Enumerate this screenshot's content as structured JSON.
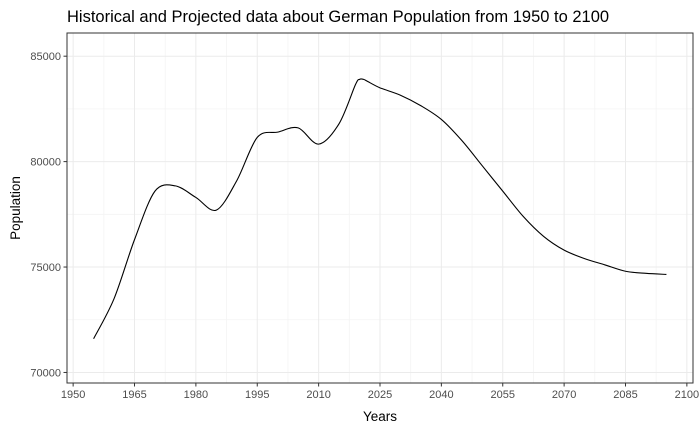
{
  "chart_data": {
    "type": "line",
    "title": "Historical and Projected data about German Population from 1950 to 2100",
    "xlabel": "Years",
    "ylabel": "Population",
    "xlim": [
      1948.5,
      2101.5
    ],
    "ylim": [
      69500,
      86100
    ],
    "x_ticks": [
      1950,
      1965,
      1980,
      1995,
      2010,
      2025,
      2040,
      2055,
      2070,
      2085,
      2100
    ],
    "x_tick_labels": [
      "1950",
      "1965",
      "1980",
      "1995",
      "2010",
      "2025",
      "2040",
      "2055",
      "2070",
      "2085",
      "2100"
    ],
    "y_ticks": [
      70000,
      75000,
      80000,
      85000
    ],
    "y_tick_labels": [
      "70000",
      "75000",
      "80000",
      "85000"
    ],
    "grid": true,
    "series": [
      {
        "color": "#000000",
        "x": [
          1955,
          1960,
          1965,
          1970,
          1975,
          1980,
          1985,
          1990,
          1995,
          2000,
          2005,
          2010,
          2015,
          2019,
          2020,
          2021,
          2022,
          2025,
          2030,
          2035,
          2040,
          2045,
          2050,
          2055,
          2060,
          2065,
          2070,
          2075,
          2080,
          2085,
          2090,
          2095
        ],
        "y": [
          71600,
          73500,
          76300,
          78600,
          78850,
          78300,
          77700,
          79100,
          81150,
          81400,
          81600,
          80830,
          81800,
          83650,
          83900,
          83900,
          83800,
          83500,
          83150,
          82650,
          82000,
          81000,
          79800,
          78600,
          77400,
          76450,
          75800,
          75400,
          75100,
          74800,
          74700,
          74650
        ]
      }
    ]
  }
}
